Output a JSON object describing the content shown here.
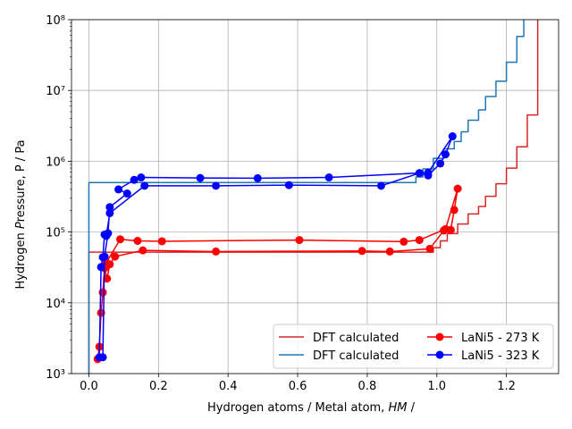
{
  "chart_data": {
    "type": "line",
    "xlabel": "Hydrogen atoms / Metal atom, HM /",
    "ylabel": "Hydrogen Pressure, P / Pa",
    "xscale": "linear",
    "yscale": "log",
    "xlim": [
      -0.05,
      1.35
    ],
    "ylim": [
      1000,
      100000000
    ],
    "grid": true,
    "legend_position": "lower right",
    "x_ticks": [
      0.0,
      0.2,
      0.4,
      0.6,
      0.8,
      1.0,
      1.2
    ],
    "x_tick_labels": [
      "0.0",
      "0.2",
      "0.4",
      "0.6",
      "0.8",
      "1.0",
      "1.2"
    ],
    "y_ticks": [
      1000,
      10000,
      100000,
      1000000,
      10000000,
      100000000
    ],
    "y_tick_labels": [
      "10³",
      "10⁴",
      "10⁵",
      "10⁶",
      "10⁷",
      "10⁸"
    ],
    "series": [
      {
        "name": "DFT calculated",
        "color": "#d62728",
        "style": "step",
        "x": [
          0.0,
          0.0,
          0.0,
          0.78,
          0.78,
          0.99,
          0.99,
          1.01,
          1.01,
          1.03,
          1.03,
          1.06,
          1.06,
          1.09,
          1.09,
          1.12,
          1.12,
          1.14,
          1.14,
          1.17,
          1.17,
          1.2,
          1.2,
          1.23,
          1.23,
          1.26,
          1.26,
          1.29,
          1.29
        ],
        "y": [
          1000,
          1000,
          52000,
          52000,
          52000,
          52000,
          60000,
          60000,
          75000,
          75000,
          95000,
          95000,
          130000,
          130000,
          180000,
          180000,
          230000,
          230000,
          320000,
          320000,
          480000,
          480000,
          800000,
          800000,
          1600000,
          1600000,
          4500000,
          4500000,
          100000000
        ]
      },
      {
        "name": "DFT calculated",
        "color": "#1f77b4",
        "style": "step",
        "x": [
          0.0,
          0.0,
          0.94,
          0.94,
          0.96,
          0.96,
          0.99,
          0.99,
          1.02,
          1.02,
          1.05,
          1.05,
          1.07,
          1.07,
          1.09,
          1.09,
          1.12,
          1.12,
          1.14,
          1.14,
          1.17,
          1.17,
          1.2,
          1.2,
          1.23,
          1.23,
          1.25,
          1.25
        ],
        "y": [
          1000,
          500000,
          500000,
          600000,
          600000,
          780000,
          780000,
          1100000,
          1100000,
          1500000,
          1500000,
          1900000,
          1900000,
          2600000,
          2600000,
          3800000,
          3800000,
          5300000,
          5300000,
          8200000,
          8200000,
          13500000,
          13500000,
          25000000,
          25000000,
          58000000,
          58000000,
          100000000
        ]
      },
      {
        "name": "LaNi5 - 273 K",
        "color": "#ff0000",
        "marker": "o",
        "x": [
          0.025,
          0.03,
          0.035,
          0.04,
          0.045,
          0.052,
          0.06,
          0.075,
          0.155,
          0.365,
          0.785,
          0.865,
          0.98,
          1.02,
          1.04,
          1.05,
          1.06,
          1.025,
          0.95,
          0.905,
          0.605,
          0.21,
          0.14,
          0.09,
          0.05
        ],
        "y": [
          1600,
          2400,
          7200,
          14000,
          31000,
          22000,
          35000,
          45000,
          55000,
          53000,
          54000,
          53000,
          58000,
          105000,
          107000,
          205000,
          410000,
          110000,
          77000,
          73000,
          77000,
          74000,
          75000,
          79000,
          37000
        ]
      },
      {
        "name": "LaNi5 - 323 K",
        "color": "#0000ff",
        "marker": "o",
        "x": [
          0.03,
          0.035,
          0.04,
          0.045,
          0.05,
          0.06,
          0.16,
          0.365,
          0.575,
          0.84,
          0.95,
          0.975,
          1.01,
          1.025,
          1.045,
          0.975,
          0.69,
          0.485,
          0.32,
          0.15,
          0.13,
          0.085,
          0.11,
          0.06,
          0.055,
          0.045,
          0.04
        ],
        "y": [
          1700,
          32000,
          44000,
          92000,
          88000,
          185000,
          450000,
          450000,
          460000,
          450000,
          680000,
          630000,
          930000,
          1250000,
          2250000,
          690000,
          590000,
          575000,
          580000,
          590000,
          545000,
          400000,
          350000,
          225000,
          96000,
          45000,
          1700
        ]
      }
    ]
  }
}
